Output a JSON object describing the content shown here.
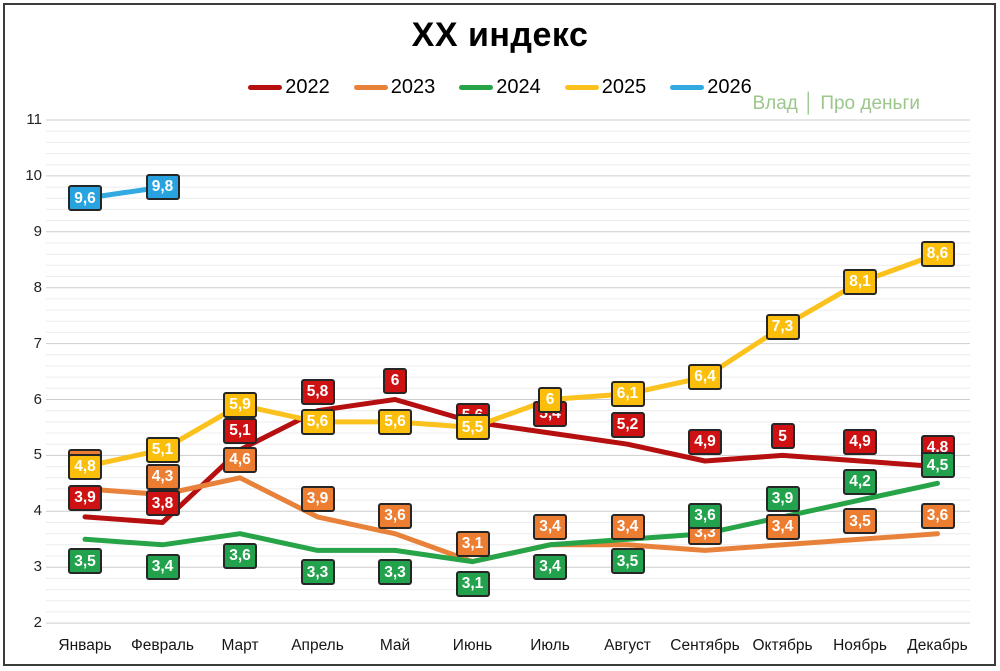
{
  "chart_data": {
    "type": "line",
    "title": "ХХ индекс",
    "watermark": "Влад │ Про деньги",
    "legend_position": "top",
    "grid": true,
    "ylim": [
      2,
      11
    ],
    "ytick_major_step": 1,
    "ytick_minor_step": 0.2,
    "yticks": [
      2,
      3,
      4,
      5,
      6,
      7,
      8,
      9,
      10,
      11
    ],
    "categories": [
      "Январь",
      "Февраль",
      "Март",
      "Апрель",
      "Май",
      "Июнь",
      "Июль",
      "Август",
      "Сентябрь",
      "Октябрь",
      "Ноябрь",
      "Декабрь"
    ],
    "series": [
      {
        "name": "2022",
        "line_color": "#b5100f",
        "box_color": "#ce1112",
        "values": [
          3.9,
          3.8,
          5.1,
          5.8,
          6,
          5.6,
          5.4,
          5.2,
          4.9,
          5,
          4.9,
          4.8
        ],
        "labels": [
          "3,9",
          "3,8",
          "5,1",
          "5,8",
          "6",
          "5,6",
          "5,4",
          "5,2",
          "4,9",
          "5",
          "4,9",
          "4,8"
        ]
      },
      {
        "name": "2023",
        "line_color": "#e8823b",
        "box_color": "#ed7d31",
        "values": [
          4.4,
          4.3,
          4.6,
          3.9,
          3.6,
          3.1,
          3.4,
          3.4,
          3.3,
          3.4,
          3.5,
          3.6
        ],
        "labels": [
          "",
          "4,3",
          "4,6",
          "3,9",
          "3,6",
          "3,1",
          "3,4",
          "3,4",
          "3,3",
          "3,4",
          "3,5",
          "3,6"
        ]
      },
      {
        "name": "2024",
        "line_color": "#27a348",
        "box_color": "#23a24e",
        "values": [
          3.5,
          3.4,
          3.6,
          3.3,
          3.3,
          3.1,
          3.4,
          3.5,
          3.6,
          3.9,
          4.2,
          4.5
        ],
        "labels": [
          "3,5",
          "3,4",
          "3,6",
          "3,3",
          "3,3",
          "3,1",
          "3,4",
          "3,5",
          "3,6",
          "3,9",
          "4,2",
          "4,5"
        ]
      },
      {
        "name": "2025",
        "line_color": "#fbc11d",
        "box_color": "#fbbf0b",
        "values": [
          4.8,
          5.1,
          5.9,
          5.6,
          5.6,
          5.5,
          6,
          6.1,
          6.4,
          7.3,
          8.1,
          8.6
        ],
        "labels": [
          "4,8",
          "5,1",
          "5,9",
          "5,6",
          "5,6",
          "5,5",
          "6",
          "6,1",
          "6,4",
          "7,3",
          "8,1",
          "8,6"
        ]
      },
      {
        "name": "2026",
        "line_color": "#33a9e2",
        "box_color": "#29a3e0",
        "values": [
          9.6,
          9.8,
          null,
          null,
          null,
          null,
          null,
          null,
          null,
          null,
          null,
          null
        ],
        "labels": [
          "9,6",
          "9,8",
          "",
          "",
          "",
          "",
          "",
          "",
          "",
          "",
          "",
          ""
        ]
      }
    ]
  }
}
